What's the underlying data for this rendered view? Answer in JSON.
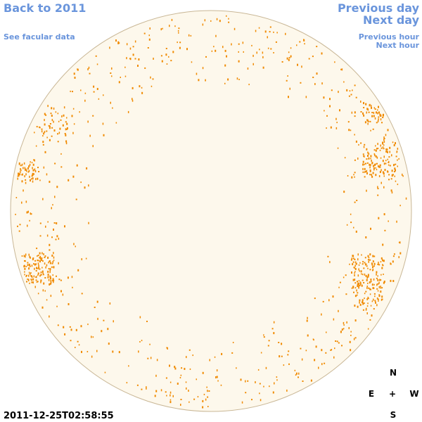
{
  "header": {
    "back_link": "Back to 2011",
    "facular_link": "See facular data",
    "previous_day": "Previous day",
    "next_day": "Next day",
    "previous_hour": "Previous hour",
    "next_hour": "Next hour"
  },
  "timestamp": "2011-12-25T02:58:55",
  "compass": {
    "north": "N",
    "east": "E",
    "center": "+",
    "west": "W",
    "south": "S"
  }
}
